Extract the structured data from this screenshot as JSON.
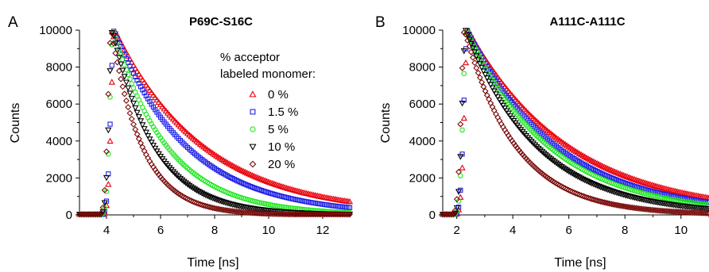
{
  "chart_data": [
    {
      "type": "scatter",
      "panel_label": "A",
      "title": "P69C-S16C",
      "xlabel": "Time [ns]",
      "ylabel": "Counts",
      "xlim": [
        3,
        13
      ],
      "ylim": [
        0,
        10000
      ],
      "xticks": [
        "4",
        "6",
        "8",
        "10",
        "12"
      ],
      "yticks": [
        "0",
        "2000",
        "4000",
        "6000",
        "8000",
        "10000"
      ],
      "legend_title_1": "% acceptor",
      "legend_title_2": "labeled monomer:",
      "legend_position": "top-right",
      "series": [
        {
          "name": "0 %",
          "color": "#e8000b",
          "marker": "triangle-up",
          "peak_x": 4.3,
          "decay_tau": 3.3
        },
        {
          "name": "1.5 %",
          "color": "#1f1fe8",
          "marker": "square",
          "peak_x": 4.28,
          "decay_tau": 2.7
        },
        {
          "name": "5 %",
          "color": "#1ee81e",
          "marker": "circle",
          "peak_x": 4.25,
          "decay_tau": 2.0
        },
        {
          "name": "10 %",
          "color": "#000000",
          "marker": "triangle-down",
          "peak_x": 4.22,
          "decay_tau": 1.55
        },
        {
          "name": "20 %",
          "color": "#7a0a0a",
          "marker": "diamond",
          "peak_x": 4.18,
          "decay_tau": 1.15
        }
      ]
    },
    {
      "type": "scatter",
      "panel_label": "B",
      "title": "A111C-A111C",
      "xlabel": "Time [ns]",
      "ylabel": "Counts",
      "xlim": [
        1.5,
        11
      ],
      "ylim": [
        0,
        10000
      ],
      "xticks": [
        "2",
        "4",
        "6",
        "8",
        "10"
      ],
      "yticks": [
        "0",
        "2000",
        "4000",
        "6000",
        "8000",
        "10000"
      ],
      "series": [
        {
          "name": "0 %",
          "color": "#e8000b",
          "marker": "triangle-up",
          "peak_x": 2.4,
          "decay_tau": 3.6
        },
        {
          "name": "1.5 %",
          "color": "#1f1fe8",
          "marker": "square",
          "peak_x": 2.38,
          "decay_tau": 3.2
        },
        {
          "name": "5 %",
          "color": "#1ee81e",
          "marker": "circle",
          "peak_x": 2.35,
          "decay_tau": 2.95
        },
        {
          "name": "10 %",
          "color": "#000000",
          "marker": "triangle-down",
          "peak_x": 2.32,
          "decay_tau": 2.55
        },
        {
          "name": "20 %",
          "color": "#7a0a0a",
          "marker": "diamond",
          "peak_x": 2.28,
          "decay_tau": 1.85
        }
      ]
    }
  ]
}
